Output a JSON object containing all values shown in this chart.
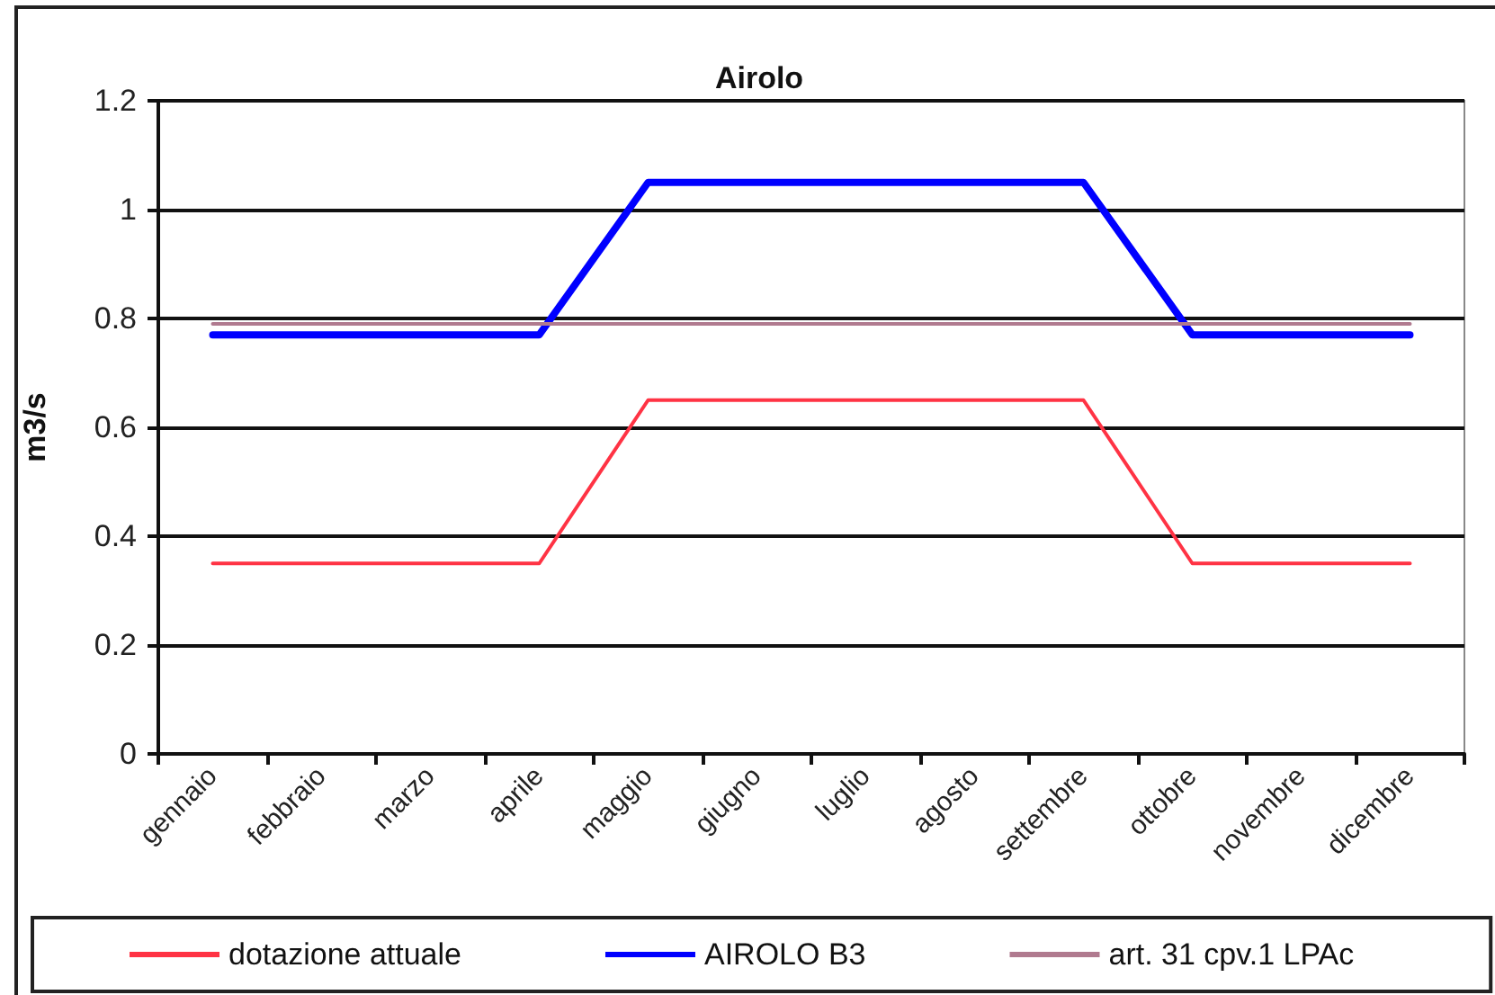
{
  "chart_data": {
    "type": "line",
    "title": "Airolo",
    "ylabel": "m3/s",
    "categories": [
      "gennaio",
      "febbraio",
      "marzo",
      "aprile",
      "maggio",
      "giugno",
      "luglio",
      "agosto",
      "settembre",
      "ottobre",
      "novembre",
      "dicembre"
    ],
    "series": [
      {
        "name": "dotazione attuale",
        "color": "#ff3344",
        "values": [
          0.35,
          0.35,
          0.35,
          0.35,
          0.65,
          0.65,
          0.65,
          0.65,
          0.65,
          0.35,
          0.35,
          0.35
        ]
      },
      {
        "name": "AIROLO B3",
        "color": "#0000ff",
        "values": [
          0.77,
          0.77,
          0.77,
          0.77,
          1.05,
          1.05,
          1.05,
          1.05,
          1.05,
          0.77,
          0.77,
          0.77
        ]
      },
      {
        "name": "art. 31 cpv.1 LPAc",
        "color": "#b07a8f",
        "values": [
          0.79,
          0.79,
          0.79,
          0.79,
          0.79,
          0.79,
          0.79,
          0.79,
          0.79,
          0.79,
          0.79,
          0.79
        ]
      }
    ],
    "ylim": [
      0,
      1.2
    ],
    "yticks": [
      0,
      0.2,
      0.4,
      0.6,
      0.8,
      1,
      1.2
    ],
    "grid": "y",
    "legend": "bottom",
    "marker": "none",
    "line_style": "solid"
  }
}
